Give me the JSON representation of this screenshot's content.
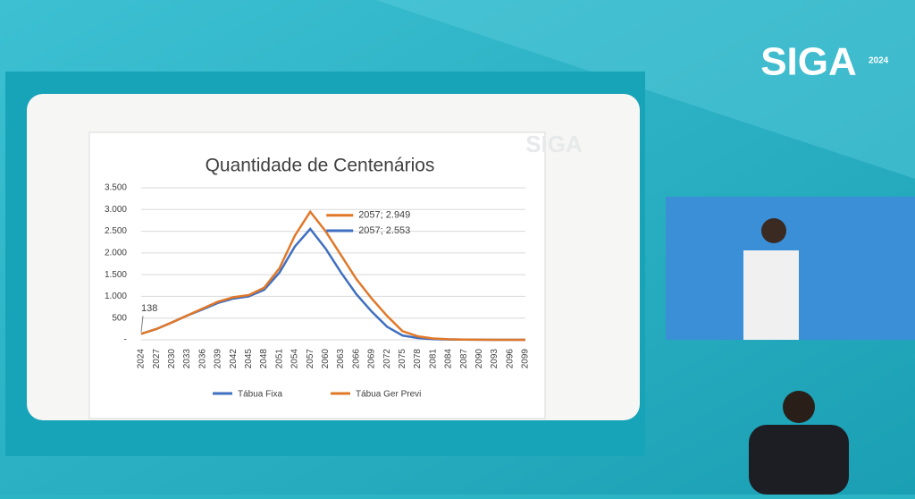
{
  "branding": {
    "logo": "SIGA",
    "year": "2024"
  },
  "chart_data": {
    "type": "line",
    "title": "Quantidade de Centenários",
    "categories": [
      "2024",
      "2027",
      "2030",
      "2033",
      "2036",
      "2039",
      "2042",
      "2045",
      "2048",
      "2051",
      "2054",
      "2057",
      "2060",
      "2063",
      "2066",
      "2069",
      "2072",
      "2075",
      "2078",
      "2081",
      "2084",
      "2087",
      "2090",
      "2093",
      "2096",
      "2099"
    ],
    "series": [
      {
        "name": "Tábua Fixa",
        "color": "#3f6fc0",
        "values": [
          138,
          250,
          400,
          560,
          700,
          850,
          950,
          1000,
          1150,
          1550,
          2150,
          2553,
          2100,
          1550,
          1050,
          650,
          300,
          100,
          40,
          15,
          8,
          4,
          2,
          1,
          0,
          0
        ]
      },
      {
        "name": "Tábua Ger Previ",
        "color": "#e0782a",
        "values": [
          138,
          250,
          400,
          560,
          720,
          880,
          980,
          1030,
          1200,
          1650,
          2400,
          2949,
          2500,
          1950,
          1400,
          950,
          550,
          200,
          80,
          30,
          12,
          6,
          3,
          1,
          0,
          0
        ]
      }
    ],
    "annotations": [
      {
        "text": "138"
      },
      {
        "text": "2057; 2.949"
      },
      {
        "text": "2057; 2.553"
      }
    ],
    "ylim": [
      0,
      3500
    ],
    "yticks": [
      {
        "value": 0,
        "label": "-"
      },
      500,
      {
        "value": 1000,
        "label": "1.000"
      },
      {
        "value": 1500,
        "label": "1.500"
      },
      {
        "value": 2000,
        "label": "2.000"
      },
      {
        "value": 2500,
        "label": "2.500"
      },
      {
        "value": 3000,
        "label": "3.000"
      },
      {
        "value": 3500,
        "label": "3.500"
      }
    ],
    "grid": true,
    "legend": "bottom"
  }
}
